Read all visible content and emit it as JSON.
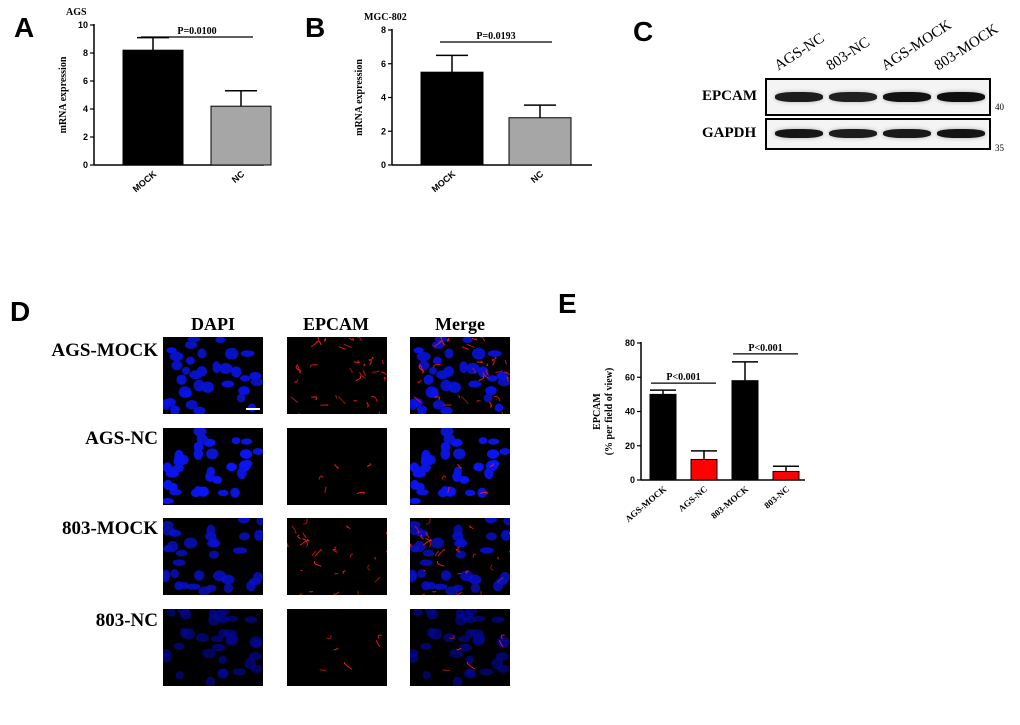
{
  "panels": {
    "A": "A",
    "B": "B",
    "C": "C",
    "D": "D",
    "E": "E"
  },
  "chart_data": [
    {
      "id": "A",
      "type": "bar",
      "title": "AGS",
      "ylabel": "mRNA expression",
      "categories": [
        "MOCK",
        "NC"
      ],
      "values": [
        8.2,
        4.2
      ],
      "errors": [
        0.9,
        1.1
      ],
      "colors": [
        "#000000",
        "#a6a6a6"
      ],
      "ylim": [
        0,
        10
      ],
      "yticks": [
        "0",
        "2",
        "4",
        "6",
        "8",
        "10"
      ],
      "annotations": [
        {
          "text": "P=0.0100",
          "from": 0,
          "to": 1
        }
      ]
    },
    {
      "id": "B",
      "type": "bar",
      "title": "MGC-802",
      "ylabel": "mRNA expression",
      "categories": [
        "MOCK",
        "NC"
      ],
      "values": [
        5.5,
        2.8
      ],
      "errors": [
        1.0,
        0.75
      ],
      "colors": [
        "#000000",
        "#a6a6a6"
      ],
      "ylim": [
        0,
        8
      ],
      "yticks": [
        "0",
        "2",
        "4",
        "6",
        "8"
      ],
      "annotations": [
        {
          "text": "P=0.0193",
          "from": 0,
          "to": 1
        }
      ]
    },
    {
      "id": "E",
      "type": "bar",
      "title": "",
      "ylabel": "EPCAM",
      "ylabel2": "(% per field of view)",
      "categories": [
        "AGS-MOCK",
        "AGS-NC",
        "803-MOCK",
        "803-NC"
      ],
      "values": [
        50,
        12,
        58,
        5
      ],
      "errors": [
        2.5,
        5,
        11,
        3
      ],
      "colors": [
        "#000000",
        "#ff0000",
        "#000000",
        "#ff0000"
      ],
      "ylim": [
        0,
        80
      ],
      "yticks": [
        "0",
        "20",
        "40",
        "60",
        "80"
      ],
      "annotations": [
        {
          "text": "P<0.001",
          "from": 0,
          "to": 1
        },
        {
          "text": "P<0.001",
          "from": 2,
          "to": 3
        }
      ]
    }
  ],
  "blot": {
    "lanes": [
      "AGS-NC",
      "803-NC",
      "AGS-MOCK",
      "803-MOCK"
    ],
    "rows": [
      {
        "label": "EPCAM",
        "mw": "40",
        "intensity": [
          0.78,
          0.72,
          0.9,
          0.95
        ]
      },
      {
        "label": "GAPDH",
        "mw": "35",
        "intensity": [
          0.85,
          0.78,
          0.82,
          0.88
        ]
      }
    ]
  },
  "microscopy": {
    "columns": [
      "DAPI",
      "EPCAM",
      "Merge"
    ],
    "rows": [
      {
        "label": "AGS-MOCK",
        "blue": 0.9,
        "red": 0.85
      },
      {
        "label": "AGS-NC",
        "blue": 1.0,
        "red": 0.12
      },
      {
        "label": "803-MOCK",
        "blue": 0.75,
        "red": 0.7
      },
      {
        "label": "803-NC",
        "blue": 0.4,
        "red": 0.15
      }
    ]
  }
}
